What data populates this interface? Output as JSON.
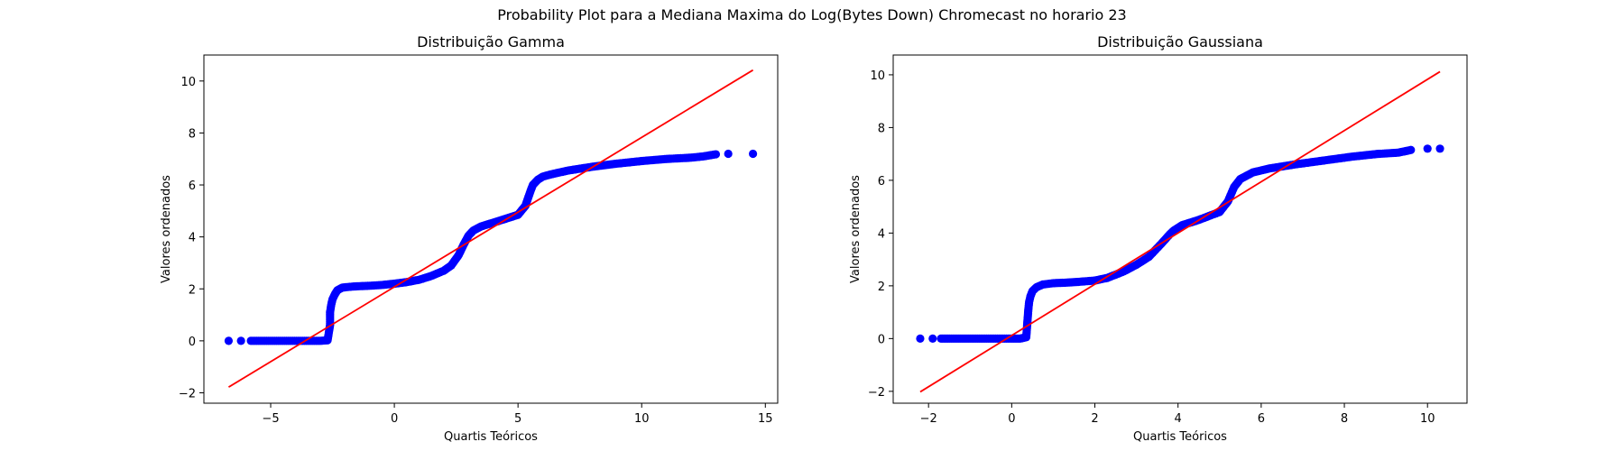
{
  "figure": {
    "suptitle": "Probability Plot para a Mediana Maxima do Log(Bytes Down) Chromecast no horario 23"
  },
  "colors": {
    "points": "#0000ff",
    "fit_line": "#ff0000",
    "axes": "#000000",
    "background": "#ffffff"
  },
  "chart_data": [
    {
      "type": "scatter",
      "title": "Distribuição Gamma",
      "xlabel": "Quartis Teóricos",
      "ylabel": "Valores ordenados",
      "xlim": [
        -7.7,
        15.5
      ],
      "ylim": [
        -2.4,
        11.0
      ],
      "xticks": [
        -5,
        0,
        5,
        10,
        15
      ],
      "yticks": [
        -2,
        0,
        2,
        4,
        6,
        8,
        10
      ],
      "grid": false,
      "legend": "none",
      "fit_line": {
        "x": [
          -6.7,
          14.5
        ],
        "y": [
          -1.78,
          10.42
        ]
      },
      "series": [
        {
          "marker": "circle",
          "x": [
            -6.7,
            -6.2,
            -5.8,
            -5.4,
            -5.0,
            -4.6,
            -4.2,
            -3.8,
            -3.4,
            -3.0,
            -2.7,
            -2.6,
            -2.6,
            -2.55,
            -2.5,
            -2.4,
            -2.3,
            -2.1,
            -1.8,
            -1.5,
            -1.0,
            -0.5,
            0.0,
            0.5,
            1.0,
            1.5,
            2.0,
            2.3,
            2.6,
            2.8,
            3.0,
            3.2,
            3.5,
            4.0,
            4.5,
            5.0,
            5.3,
            5.5,
            5.6,
            5.8,
            6.0,
            6.3,
            7.0,
            8.0,
            9.0,
            10.0,
            11.0,
            12.0,
            12.5,
            13.0,
            13.5,
            14.5
          ],
          "y": [
            0.0,
            0.0,
            0.0,
            0.0,
            0.0,
            0.0,
            0.0,
            0.0,
            0.0,
            0.0,
            0.02,
            0.6,
            1.1,
            1.4,
            1.6,
            1.8,
            1.95,
            2.05,
            2.08,
            2.1,
            2.12,
            2.15,
            2.2,
            2.26,
            2.35,
            2.5,
            2.7,
            2.9,
            3.3,
            3.7,
            4.05,
            4.25,
            4.4,
            4.55,
            4.7,
            4.85,
            5.2,
            5.75,
            6.0,
            6.2,
            6.32,
            6.4,
            6.55,
            6.7,
            6.82,
            6.92,
            7.0,
            7.05,
            7.1,
            7.18,
            7.2,
            7.2
          ]
        }
      ]
    },
    {
      "type": "scatter",
      "title": "Distribuição Gaussiana",
      "xlabel": "Quartis Teóricos",
      "ylabel": "Valores ordenados",
      "xlim": [
        -2.85,
        10.95
      ],
      "ylim": [
        -2.45,
        10.75
      ],
      "xticks": [
        -2,
        0,
        2,
        4,
        6,
        8,
        10
      ],
      "yticks": [
        -2,
        0,
        2,
        4,
        6,
        8,
        10
      ],
      "grid": false,
      "legend": "none",
      "fit_line": {
        "x": [
          -2.2,
          10.3
        ],
        "y": [
          -2.02,
          10.12
        ]
      },
      "series": [
        {
          "marker": "circle",
          "x": [
            -2.2,
            -1.9,
            -1.7,
            -1.5,
            -1.2,
            -0.9,
            -0.6,
            -0.3,
            0.0,
            0.2,
            0.35,
            0.38,
            0.4,
            0.42,
            0.45,
            0.5,
            0.6,
            0.75,
            1.0,
            1.3,
            1.6,
            2.0,
            2.3,
            2.7,
            3.0,
            3.3,
            3.6,
            3.8,
            3.9,
            4.1,
            4.5,
            5.0,
            5.2,
            5.35,
            5.5,
            5.8,
            6.2,
            6.8,
            7.5,
            8.2,
            8.8,
            9.3,
            9.6,
            10.0,
            10.3
          ],
          "y": [
            0.0,
            0.0,
            0.0,
            0.0,
            0.0,
            0.0,
            0.0,
            0.0,
            0.0,
            0.0,
            0.05,
            0.7,
            1.1,
            1.4,
            1.6,
            1.8,
            1.95,
            2.05,
            2.1,
            2.12,
            2.15,
            2.2,
            2.3,
            2.55,
            2.8,
            3.1,
            3.6,
            3.95,
            4.1,
            4.3,
            4.5,
            4.8,
            5.2,
            5.75,
            6.05,
            6.3,
            6.45,
            6.6,
            6.75,
            6.9,
            7.0,
            7.05,
            7.15,
            7.2,
            7.2
          ]
        }
      ]
    }
  ]
}
